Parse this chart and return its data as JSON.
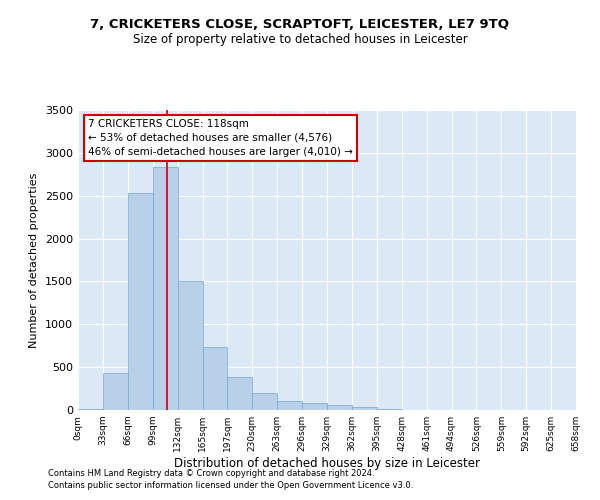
{
  "title": "7, CRICKETERS CLOSE, SCRAPTOFT, LEICESTER, LE7 9TQ",
  "subtitle": "Size of property relative to detached houses in Leicester",
  "xlabel": "Distribution of detached houses by size in Leicester",
  "ylabel": "Number of detached properties",
  "footnote1": "Contains HM Land Registry data © Crown copyright and database right 2024.",
  "footnote2": "Contains public sector information licensed under the Open Government Licence v3.0.",
  "bar_color": "#b8d0e8",
  "bar_edge_color": "#6fa8d4",
  "background_color": "#dce8f5",
  "property_size": 118,
  "property_line_color": "#cc0000",
  "annotation_text": "7 CRICKETERS CLOSE: 118sqm\n← 53% of detached houses are smaller (4,576)\n46% of semi-detached houses are larger (4,010) →",
  "annotation_box_color": "#ffffff",
  "annotation_border_color": "#cc0000",
  "bins": [
    0,
    33,
    66,
    99,
    132,
    165,
    197,
    230,
    263,
    296,
    329,
    362,
    395,
    428,
    461,
    494,
    526,
    559,
    592,
    625,
    658
  ],
  "bin_labels": [
    "0sqm",
    "33sqm",
    "66sqm",
    "99sqm",
    "132sqm",
    "165sqm",
    "197sqm",
    "230sqm",
    "263sqm",
    "296sqm",
    "329sqm",
    "362sqm",
    "395sqm",
    "428sqm",
    "461sqm",
    "494sqm",
    "526sqm",
    "559sqm",
    "592sqm",
    "625sqm",
    "658sqm"
  ],
  "counts": [
    10,
    430,
    2530,
    2840,
    1500,
    730,
    390,
    195,
    110,
    80,
    55,
    30,
    10,
    0,
    0,
    0,
    0,
    0,
    0,
    0
  ],
  "ylim": [
    0,
    3500
  ],
  "yticks": [
    0,
    500,
    1000,
    1500,
    2000,
    2500,
    3000,
    3500
  ]
}
